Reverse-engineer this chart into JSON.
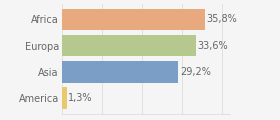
{
  "categories": [
    "Africa",
    "Europa",
    "Asia",
    "America"
  ],
  "values": [
    35.8,
    33.6,
    29.2,
    1.3
  ],
  "labels": [
    "35,8%",
    "33,6%",
    "29,2%",
    "1,3%"
  ],
  "bar_colors": [
    "#e8a97e",
    "#b5c98e",
    "#7b9ec7",
    "#e8c96e"
  ],
  "background_color": "#f5f5f5",
  "xlim": [
    0,
    42
  ],
  "bar_height": 0.82,
  "label_fontsize": 7.0,
  "tick_fontsize": 7.0,
  "label_color": "#666666",
  "tick_color": "#666666",
  "grid_color": "#dddddd"
}
